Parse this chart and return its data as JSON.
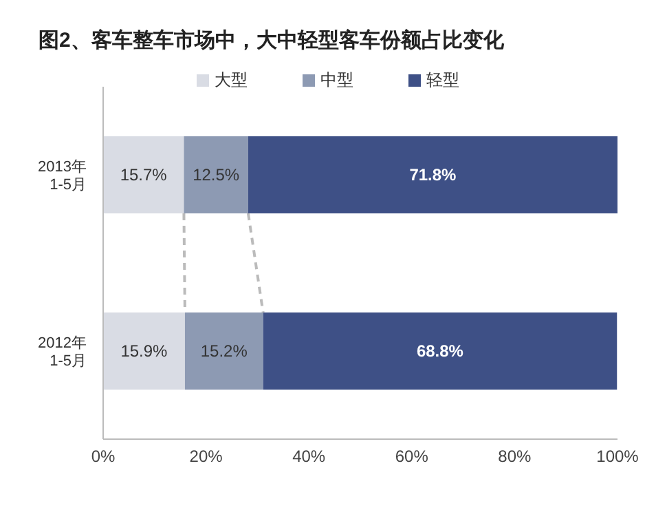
{
  "chart_data": {
    "type": "bar",
    "orientation": "horizontal",
    "stacked": true,
    "title": "图2、客车整车市场中，大中轻型客车份额占比变化",
    "categories": [
      "2013年 1-5月",
      "2012年 1-5月"
    ],
    "series": [
      {
        "name": "大型",
        "color": "#d9dce4",
        "values": [
          15.7,
          15.9
        ],
        "value_labels": [
          "15.7%",
          "15.9%"
        ]
      },
      {
        "name": "中型",
        "color": "#8d9ab3",
        "values": [
          12.5,
          15.2
        ],
        "value_labels": [
          "12.5%",
          "15.2%"
        ]
      },
      {
        "name": "轻型",
        "color": "#3e5086",
        "values": [
          71.8,
          68.8
        ],
        "value_labels": [
          "71.8%",
          "68.8%"
        ]
      }
    ],
    "xlim": [
      0,
      100
    ],
    "xticks": [
      {
        "value": 0,
        "label": "0%"
      },
      {
        "value": 20,
        "label": "20%"
      },
      {
        "value": 40,
        "label": "40%"
      },
      {
        "value": 60,
        "label": "60%"
      },
      {
        "value": 80,
        "label": "80%"
      },
      {
        "value": 100,
        "label": "100%"
      }
    ],
    "legend": "top"
  }
}
